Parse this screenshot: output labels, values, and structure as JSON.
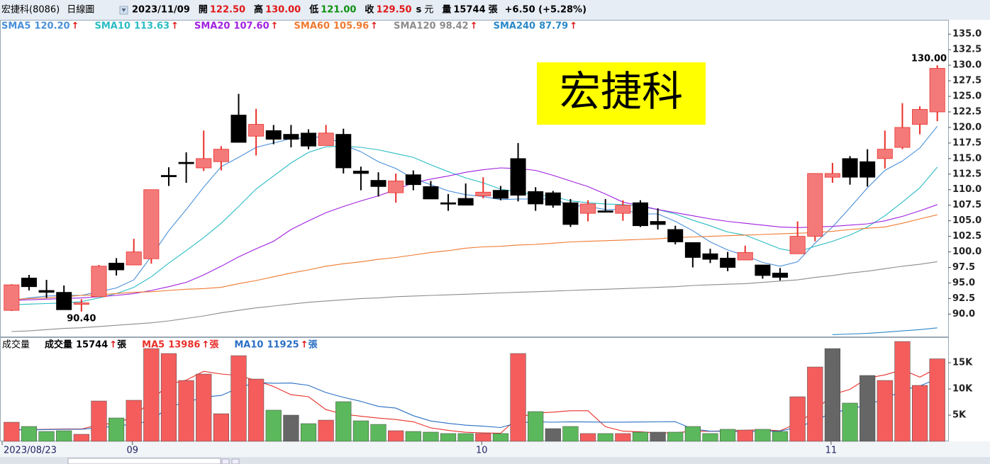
{
  "header": {
    "stock": "宏捷科(8086)",
    "period": "日線圖",
    "date": "2023/11/09",
    "open_label": "開",
    "open": "122.50",
    "high_label": "高",
    "high": "130.00",
    "low_label": "低",
    "low": "121.00",
    "close_label": "收",
    "close": "129.50",
    "currency_mark": "s",
    "currency": "元",
    "volume_label": "量",
    "volume": "15744",
    "volume_unit": "張",
    "change": "+6.50 (+5.28%)"
  },
  "chart_data": [
    {
      "type": "candlestick",
      "title": "宏捷科",
      "open": [
        90.6,
        95.8,
        93.8,
        93.5,
        91.6,
        92.8,
        98.2,
        97.9,
        98.9,
        112.3,
        114.4,
        113.5,
        114.5,
        122.0,
        118.6,
        119.5,
        118.9,
        119.1,
        117.1,
        118.9,
        113.0,
        111.5,
        109.5,
        112.4,
        110.5,
        107.9,
        108.6,
        109.0,
        109.9,
        115.0,
        109.7,
        109.5,
        107.9,
        106.2,
        106.6,
        106.2,
        107.9,
        104.9,
        103.6,
        101.5,
        99.7,
        99.0,
        98.7,
        97.9,
        96.6,
        99.7,
        102.5,
        112.0,
        115.0,
        114.5,
        115.0,
        116.8,
        120.5,
        122.5
      ],
      "high": [
        94.8,
        96.3,
        95.5,
        94.6,
        92.4,
        97.9,
        99.0,
        102.1,
        110.0,
        113.6,
        116.0,
        119.5,
        117.0,
        125.4,
        123.0,
        120.4,
        120.4,
        119.7,
        120.4,
        119.8,
        113.7,
        112.8,
        112.6,
        113.1,
        111.4,
        109.3,
        111.0,
        112.0,
        110.6,
        117.5,
        110.4,
        109.8,
        108.5,
        108.3,
        108.5,
        108.3,
        108.3,
        107.0,
        104.2,
        101.5,
        100.5,
        100.0,
        101.0,
        97.9,
        97.4,
        104.9,
        112.6,
        114.3,
        115.4,
        116.5,
        119.5,
        123.9,
        123.4,
        130.0
      ],
      "low": [
        90.5,
        93.8,
        92.6,
        90.7,
        90.4,
        92.8,
        96.2,
        97.9,
        98.1,
        110.6,
        111.1,
        113.0,
        113.1,
        117.6,
        115.5,
        117.3,
        116.8,
        116.5,
        117.1,
        112.6,
        109.9,
        108.9,
        107.9,
        109.9,
        108.5,
        106.6,
        107.5,
        108.6,
        108.3,
        108.1,
        106.6,
        107.1,
        104.0,
        104.9,
        106.4,
        105.0,
        104.0,
        103.6,
        101.2,
        97.5,
        98.2,
        96.9,
        98.7,
        95.7,
        95.4,
        99.7,
        101.7,
        111.1,
        110.8,
        110.5,
        113.4,
        116.5,
        118.9,
        121.0
      ],
      "close": [
        94.7,
        94.4,
        93.5,
        90.7,
        91.8,
        97.7,
        97.1,
        100.0,
        110.0,
        112.3,
        114.4,
        115.0,
        116.5,
        117.6,
        120.5,
        118.1,
        118.1,
        117.0,
        119.1,
        113.5,
        112.6,
        110.5,
        111.4,
        110.8,
        108.5,
        107.9,
        107.5,
        109.6,
        108.6,
        109.1,
        107.7,
        107.5,
        104.4,
        107.7,
        106.6,
        107.5,
        104.2,
        104.4,
        101.6,
        99.1,
        98.8,
        97.5,
        99.9,
        96.2,
        95.9,
        102.5,
        112.6,
        112.6,
        112.0,
        112.0,
        116.5,
        120.0,
        122.9,
        129.5
      ],
      "up_color": "#f47a7a",
      "up_line": "#e8302a",
      "down_color": "#000000",
      "ylim": [
        86.4,
        137.3
      ],
      "yticks": [
        {
          "value": 90,
          "label": "90.0"
        },
        92.5,
        {
          "value": 95,
          "label": "95.0"
        },
        97.5,
        {
          "value": 100,
          "label": "100.0"
        },
        102.5,
        {
          "value": 105,
          "label": "105.0"
        },
        107.5,
        {
          "value": 110,
          "label": "110.0"
        },
        112.5,
        {
          "value": 115,
          "label": "115.0"
        },
        117.5,
        {
          "value": 120,
          "label": "120.0"
        },
        122.5,
        {
          "value": 125,
          "label": "125.0"
        },
        127.5,
        {
          "value": 130,
          "label": "130.0"
        },
        132.5,
        {
          "value": 135,
          "label": "135.0"
        }
      ],
      "annotations": [
        {
          "value": 130,
          "label": "130.00"
        },
        {
          "value": 90.4,
          "label": "90.40"
        }
      ],
      "series": [
        {
          "name": "SMA5",
          "last_label": "120.20",
          "trend": "↑",
          "color": "#4a8fd8",
          "values": [
            92.2,
            92.6,
            92.9,
            93.0,
            93.0,
            93.6,
            94.2,
            95.5,
            99.3,
            103.4,
            106.8,
            110.4,
            113.7,
            115.2,
            116.8,
            117.5,
            118.2,
            118.3,
            118.6,
            117.2,
            116.1,
            114.5,
            113.4,
            111.8,
            110.8,
            109.8,
            109.2,
            108.9,
            108.4,
            108.5,
            108.5,
            108.5,
            107.5,
            107.3,
            106.8,
            106.8,
            106.1,
            106.1,
            104.9,
            103.4,
            101.6,
            100.3,
            99.4,
            98.3,
            97.7,
            98.4,
            101.4,
            104.0,
            107.1,
            110.3,
            113.1,
            114.6,
            116.7,
            120.2
          ]
        },
        {
          "name": "SMA10",
          "last_label": "113.63",
          "trend": "↑",
          "color": "#2abcc4",
          "values": [
            91.5,
            91.6,
            91.7,
            91.8,
            92.0,
            92.6,
            93.3,
            94.3,
            96.0,
            98.2,
            100.2,
            102.3,
            104.6,
            107.3,
            110.1,
            112.2,
            114.3,
            116.0,
            116.9,
            117.0,
            116.8,
            116.4,
            115.8,
            115.2,
            114.0,
            112.9,
            111.9,
            111.1,
            110.1,
            109.6,
            109.2,
            108.9,
            108.2,
            107.9,
            107.7,
            107.6,
            107.3,
            106.8,
            106.1,
            105.1,
            104.2,
            103.2,
            102.7,
            101.6,
            100.5,
            100.0,
            100.9,
            101.7,
            102.7,
            104.0,
            105.8,
            108.0,
            110.3,
            113.63
          ]
        },
        {
          "name": "SMA20",
          "last_label": "107.60",
          "trend": "↑",
          "color": "#a020e0",
          "values": [
            92.2,
            92.3,
            92.4,
            92.5,
            92.6,
            92.8,
            93.0,
            93.3,
            93.8,
            94.4,
            95.1,
            96.3,
            97.7,
            99.2,
            100.5,
            101.7,
            103.6,
            105.0,
            106.3,
            107.3,
            108.2,
            109.0,
            110.0,
            111.1,
            111.7,
            112.2,
            112.8,
            113.2,
            113.5,
            113.4,
            113.1,
            112.3,
            111.4,
            110.5,
            109.3,
            108.0,
            107.4,
            106.8,
            106.3,
            105.8,
            105.3,
            104.9,
            104.6,
            104.3,
            104.0,
            103.9,
            104.0,
            104.1,
            104.3,
            104.5,
            105.0,
            105.7,
            106.6,
            107.6
          ]
        },
        {
          "name": "SMA60",
          "last_label": "105.96",
          "trend": "↑",
          "color": "#ef7a30",
          "values": [
            92.3,
            92.5,
            92.6,
            92.8,
            93.0,
            93.1,
            93.3,
            93.5,
            93.6,
            93.8,
            94.0,
            94.1,
            94.3,
            94.9,
            95.4,
            96.0,
            96.6,
            97.1,
            97.7,
            98.1,
            98.4,
            98.8,
            99.1,
            99.5,
            99.9,
            100.2,
            100.6,
            100.8,
            100.9,
            101.1,
            101.2,
            101.4,
            101.6,
            101.7,
            101.8,
            101.9,
            102.0,
            102.1,
            102.3,
            102.4,
            102.5,
            102.6,
            102.7,
            102.8,
            102.9,
            103.0,
            103.1,
            103.3,
            103.6,
            103.8,
            104.0,
            104.6,
            105.3,
            105.96
          ]
        },
        {
          "name": "SMA120",
          "last_label": "98.42",
          "trend": "↑",
          "color": "#8c8c8c",
          "values": [
            87.2,
            87.3,
            87.5,
            87.7,
            87.8,
            88.0,
            88.2,
            88.4,
            88.6,
            88.9,
            89.3,
            89.7,
            90.2,
            90.6,
            91.0,
            91.3,
            91.6,
            91.9,
            92.1,
            92.3,
            92.5,
            92.6,
            92.8,
            92.9,
            93.0,
            93.1,
            93.2,
            93.3,
            93.4,
            93.5,
            93.6,
            93.7,
            93.8,
            93.9,
            94.0,
            94.1,
            94.2,
            94.3,
            94.4,
            94.6,
            94.7,
            94.8,
            94.9,
            95.1,
            95.3,
            95.5,
            95.9,
            96.2,
            96.6,
            96.9,
            97.3,
            97.7,
            98.0,
            98.42
          ]
        },
        {
          "name": "SMA240",
          "last_label": "87.79",
          "trend": "↑",
          "color": "#2a88c8",
          "values": [
            null,
            null,
            null,
            null,
            null,
            null,
            null,
            null,
            null,
            null,
            null,
            null,
            null,
            null,
            null,
            null,
            null,
            null,
            null,
            null,
            null,
            null,
            null,
            null,
            null,
            null,
            null,
            null,
            null,
            null,
            null,
            null,
            null,
            null,
            null,
            null,
            null,
            null,
            null,
            null,
            null,
            null,
            null,
            null,
            null,
            null,
            null,
            86.7,
            86.8,
            86.9,
            87.1,
            87.3,
            87.5,
            87.79
          ]
        }
      ]
    },
    {
      "type": "bar",
      "title": "成交量",
      "unit": "張",
      "categories": [
        "2023/08/23",
        null,
        null,
        null,
        null,
        null,
        null,
        "09",
        null,
        null,
        null,
        null,
        null,
        null,
        null,
        null,
        null,
        null,
        null,
        null,
        null,
        null,
        null,
        null,
        null,
        null,
        null,
        "10",
        null,
        null,
        null,
        null,
        null,
        null,
        null,
        null,
        null,
        null,
        null,
        null,
        null,
        null,
        null,
        null,
        null,
        null,
        null,
        "11",
        null,
        null,
        null,
        null,
        null,
        null
      ],
      "values": [
        3650,
        2840,
        1890,
        2030,
        1350,
        7700,
        4460,
        7840,
        17700,
        16760,
        11620,
        12840,
        5270,
        16350,
        11890,
        5950,
        5000,
        3380,
        4050,
        7570,
        3920,
        3240,
        2030,
        1890,
        1760,
        1490,
        1490,
        1490,
        1490,
        16760,
        5680,
        2430,
        2840,
        1490,
        1490,
        1490,
        1760,
        1760,
        1760,
        2840,
        1490,
        2300,
        2160,
        2300,
        1890,
        8510,
        14190,
        17700,
        7300,
        12570,
        11620,
        19050,
        10680,
        15744
      ],
      "colors": [
        "#f55d5d",
        "#5cb85c",
        "#5cb85c",
        "#5cb85c",
        "#f55d5d",
        "#f55d5d",
        "#5cb85c",
        "#f55d5d",
        "#f55d5d",
        "#f55d5d",
        "#f55d5d",
        "#f55d5d",
        "#f55d5d",
        "#f55d5d",
        "#f55d5d",
        "#5cb85c",
        "#666666",
        "#5cb85c",
        "#f55d5d",
        "#5cb85c",
        "#5cb85c",
        "#5cb85c",
        "#f55d5d",
        "#5cb85c",
        "#5cb85c",
        "#5cb85c",
        "#5cb85c",
        "#f55d5d",
        "#5cb85c",
        "#f55d5d",
        "#5cb85c",
        "#666666",
        "#5cb85c",
        "#f55d5d",
        "#5cb85c",
        "#f55d5d",
        "#5cb85c",
        "#666666",
        "#5cb85c",
        "#5cb85c",
        "#5cb85c",
        "#5cb85c",
        "#f55d5d",
        "#5cb85c",
        "#5cb85c",
        "#f55d5d",
        "#f55d5d",
        "#666666",
        "#5cb85c",
        "#666666",
        "#f55d5d",
        "#f55d5d",
        "#f55d5d",
        "#f55d5d"
      ],
      "ylim": [
        0,
        19600
      ],
      "yticks": [
        {
          "value": 5000,
          "label": "5K"
        },
        {
          "value": 10000,
          "label": "10K"
        },
        {
          "value": 15000,
          "label": "15K"
        }
      ],
      "series": [
        {
          "name": "成交量",
          "last_label": "15744",
          "trend": "↑",
          "color": "#000000"
        },
        {
          "name": "MA5",
          "last_label": "13986",
          "trend": "↑",
          "color": "#e8302a",
          "values": [
            2200,
            2250,
            2300,
            2350,
            2352,
            3162,
            3486,
            4676,
            7810,
            10892,
            11676,
            13352,
            12838,
            12568,
            11594,
            10460,
            8892,
            8514,
            6054,
            5190,
            4784,
            4432,
            4162,
            3730,
            2568,
            2082,
            1732,
            1624,
            1544,
            4544,
            5382,
            5570,
            5840,
            5840,
            2786,
            1948,
            1814,
            1598,
            1652,
            1922,
            1922,
            2030,
            2110,
            2218,
            2028,
            3432,
            5810,
            8918,
            9918,
            12054,
            12676,
            13648,
            12244,
            13986
          ]
        },
        {
          "name": "MA10",
          "last_label": "11925",
          "trend": "↑",
          "color": "#2a6fc4",
          "values": [
            2200,
            2200,
            2250,
            2300,
            2300,
            2600,
            2900,
            3300,
            3900,
            6622,
            7419,
            8419,
            8757,
            10189,
            11243,
            11068,
            11122,
            10676,
            9311,
            8392,
            7622,
            6662,
            6338,
            4892,
            3879,
            3433,
            3082,
            2893,
            2637,
            3556,
            3732,
            3651,
            3732,
            3692,
            3665,
            3665,
            3692,
            3719,
            3746,
            2354,
            1935,
            1922,
            1854,
            1935,
            1975,
            2677,
            3920,
            5514,
            6068,
            7041,
            8054,
            9729,
            10581,
            11925
          ]
        }
      ]
    }
  ]
}
